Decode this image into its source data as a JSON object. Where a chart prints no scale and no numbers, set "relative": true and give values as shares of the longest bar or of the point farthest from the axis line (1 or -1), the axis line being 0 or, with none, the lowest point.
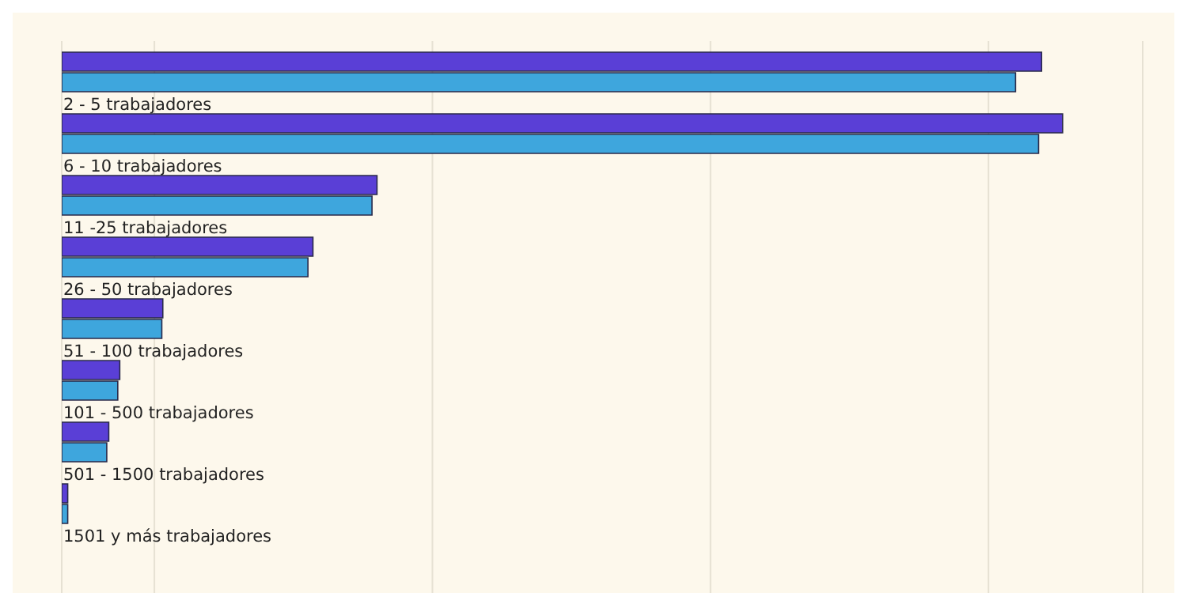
{
  "chart_data": {
    "type": "bar",
    "orientation": "horizontal",
    "relative": true,
    "grid": "x",
    "categories": [
      null,
      "2 - 5 trabajadores",
      "6 - 10 trabajadores",
      "11 -25 trabajadores",
      "26 - 50 trabajadores",
      "51 - 100 trabajadores",
      "101 - 500 trabajadores",
      "501 - 1500 trabajadores",
      "1501 y más trabajadores"
    ],
    "series": [
      {
        "color": "#5a3fd6",
        "values": [
          0.979,
          1,
          0.315,
          0.251,
          0.101,
          0.058,
          0.047,
          0.006,
          null
        ]
      },
      {
        "color": "#3ea6dd",
        "values": [
          0.953,
          0.976,
          0.31,
          0.246,
          0.1,
          0.056,
          0.045,
          0.006,
          null
        ]
      }
    ]
  }
}
